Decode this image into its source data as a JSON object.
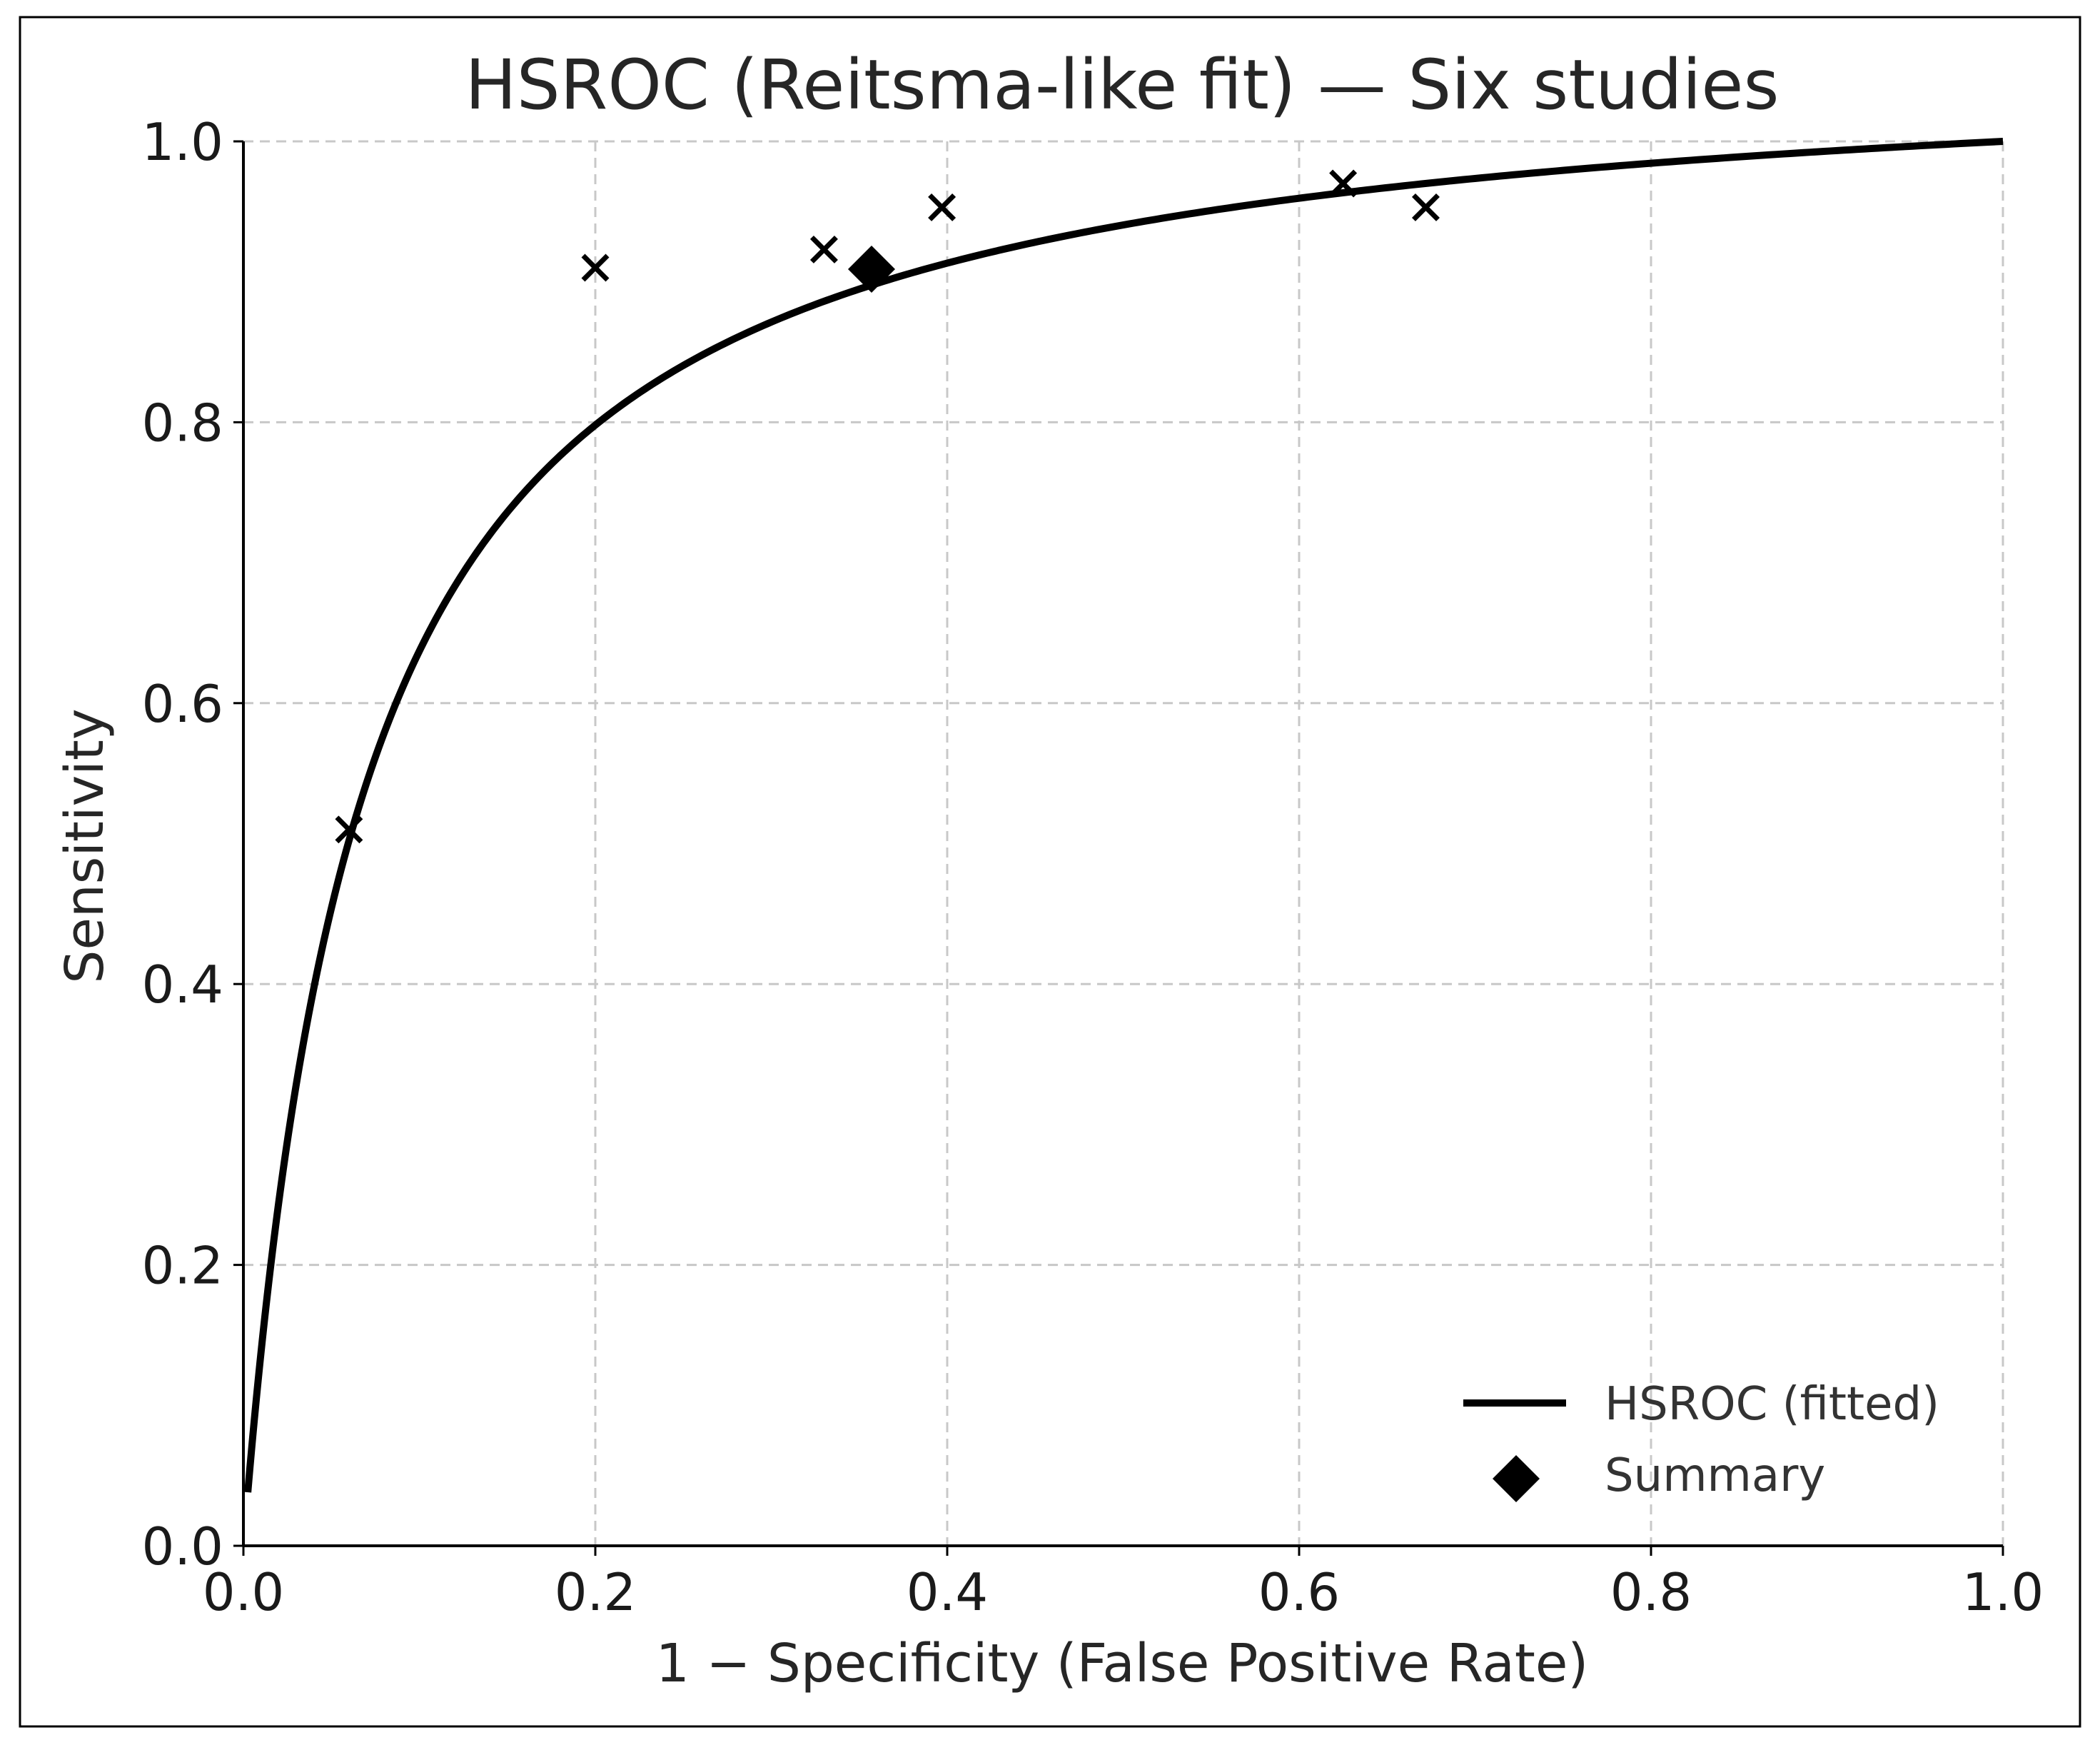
{
  "chart_data": {
    "type": "scatter",
    "title": "HSROC (Reitsma-like fit) — Six studies",
    "xlabel": "1 − Specificity (False Positive Rate)",
    "ylabel": "Sensitivity",
    "xlim": [
      0.0,
      1.0
    ],
    "ylim": [
      0.0,
      1.0
    ],
    "grid": true,
    "xticks": [
      "0.0",
      "0.2",
      "0.4",
      "0.6",
      "0.8",
      "1.0"
    ],
    "yticks": [
      "0.0",
      "0.2",
      "0.4",
      "0.6",
      "0.8",
      "1.0"
    ],
    "series": [
      {
        "name": "Studies",
        "marker": "x",
        "points": [
          {
            "x": 0.06,
            "y": 0.51
          },
          {
            "x": 0.2,
            "y": 0.91
          },
          {
            "x": 0.33,
            "y": 0.923
          },
          {
            "x": 0.397,
            "y": 0.953
          },
          {
            "x": 0.625,
            "y": 0.97
          },
          {
            "x": 0.672,
            "y": 0.953
          }
        ]
      },
      {
        "name": "HSROC (fitted)",
        "marker": "line",
        "note": "logit(sens) = 2.76 + 1.0 * logit(fpr)",
        "intercept": 2.76,
        "slope": 1.0,
        "x_start": 0.0025
      },
      {
        "name": "Summary",
        "marker": "diamond",
        "points": [
          {
            "x": 0.357,
            "y": 0.909
          }
        ]
      }
    ],
    "legend": {
      "position": "bottom-right",
      "entries": [
        {
          "label": "HSROC (fitted)",
          "symbol": "line"
        },
        {
          "label": "Summary",
          "symbol": "diamond"
        }
      ]
    }
  }
}
